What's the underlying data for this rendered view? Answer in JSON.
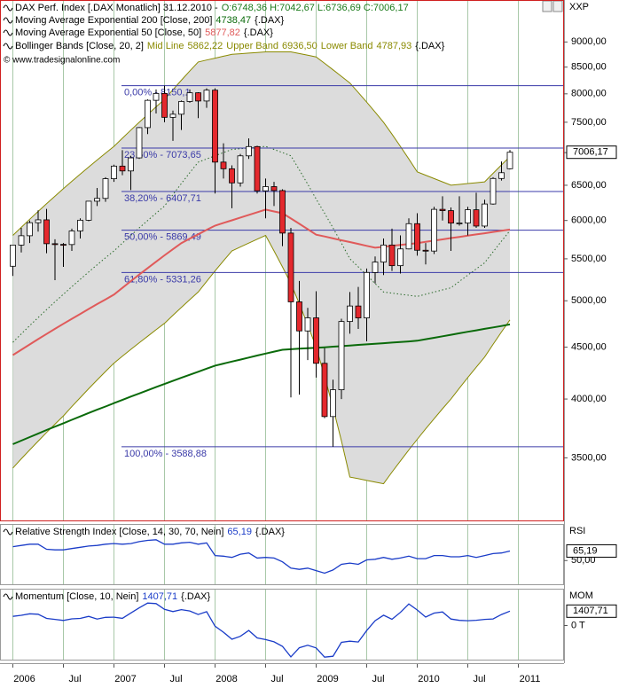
{
  "chart_data": [
    {
      "type": "candlestick",
      "title": "DAX Perf. Index [.DAX  Monatlich] 31.12.2010 -",
      "ohlc_label": "O:6748,36 H:7042,67 L:6736,69 C:7006,17",
      "source": "© www.tradesignalonline.com",
      "axis_label": "XXP",
      "last_value_label": "7006,17",
      "log_scale": true,
      "grid": true,
      "up_color": "#ffffff",
      "down_color": "#e4282d",
      "categories": [
        "2006",
        null,
        null,
        null,
        null,
        null,
        "Jul",
        null,
        null,
        null,
        null,
        null,
        "2007",
        null,
        null,
        null,
        null,
        null,
        "Jul",
        null,
        null,
        null,
        null,
        null,
        "2008",
        null,
        null,
        null,
        null,
        null,
        "Jul",
        null,
        null,
        null,
        null,
        null,
        "2009",
        null,
        null,
        null,
        null,
        null,
        "Jul",
        null,
        null,
        null,
        null,
        null,
        "2010",
        null,
        null,
        null,
        null,
        null,
        "Jul",
        null,
        null,
        null,
        null,
        null,
        "2011"
      ],
      "open": [
        5408,
        5674,
        5796,
        5970,
        6009,
        5692,
        5683,
        5681,
        5859,
        6004,
        6269,
        6309,
        6597,
        6789,
        6715,
        6917,
        7409,
        7883,
        8007,
        7584,
        7638,
        7862,
        8019,
        7871,
        8067,
        6851,
        6748,
        6535,
        6949,
        7097,
        6418,
        6480,
        6422,
        5831,
        4988,
        4669,
        4810,
        4338,
        3844,
        4085,
        4770,
        4941,
        4809,
        5332,
        5459,
        5675,
        5415,
        5625,
        5957,
        5608,
        5598,
        6154,
        6136,
        5965,
        5966,
        6148,
        5925,
        6229,
        6601,
        6748.36,
        null
      ],
      "high": [
        5674,
        5900,
        6000,
        6140,
        6160,
        5750,
        5700,
        5890,
        6030,
        6270,
        6460,
        6620,
        6810,
        7040,
        6950,
        7420,
        7900,
        8080,
        8150,
        7700,
        7880,
        8080,
        8030,
        8100,
        8100,
        7150,
        6800,
        6980,
        7230,
        7110,
        6600,
        6550,
        6440,
        5900,
        5230,
        4920,
        5110,
        4490,
        4180,
        4800,
        5100,
        5160,
        5380,
        5530,
        5760,
        5890,
        5800,
        6030,
        6100,
        5700,
        6190,
        6340,
        6180,
        6340,
        6190,
        6390,
        6290,
        6620,
        6860,
        7042.67,
        null
      ],
      "low": [
        5290,
        5580,
        5700,
        5850,
        5570,
        5240,
        5400,
        5600,
        5760,
        5990,
        6200,
        6260,
        6550,
        6650,
        6430,
        6900,
        7300,
        7650,
        7500,
        7190,
        7370,
        7840,
        7570,
        7750,
        6380,
        6600,
        6170,
        6480,
        6900,
        6380,
        6030,
        6200,
        5660,
        4015,
        4040,
        4370,
        4200,
        3830,
        3589,
        4000,
        4640,
        4690,
        4560,
        5200,
        5300,
        5350,
        5320,
        5620,
        5540,
        5430,
        5560,
        6000,
        5600,
        5930,
        5800,
        5900,
        5900,
        6220,
        6570,
        6736.69,
        null
      ],
      "close": [
        5674,
        5796,
        5970,
        6009,
        5692,
        5683,
        5681,
        5859,
        6004,
        6269,
        6309,
        6597,
        6789,
        6715,
        6917,
        7409,
        7883,
        8007,
        7584,
        7638,
        7862,
        8019,
        7871,
        8067,
        6851,
        6748,
        6535,
        6949,
        7097,
        6418,
        6480,
        6422,
        5831,
        4988,
        4669,
        4810,
        4338,
        3844,
        4085,
        4770,
        4941,
        4809,
        5332,
        5459,
        5675,
        5415,
        5625,
        5957,
        5608,
        5598,
        6154,
        6136,
        5965,
        5966,
        6148,
        5925,
        6229,
        6601,
        6688,
        7006.17,
        null
      ],
      "ylim": [
        3030,
        9900
      ],
      "yticks": [
        {
          "value": 3500,
          "label": "3500,00"
        },
        {
          "value": 4000,
          "label": "4000,00"
        },
        {
          "value": 4500,
          "label": "4500,00"
        },
        {
          "value": 5000,
          "label": "5000,00"
        },
        {
          "value": 5500,
          "label": "5500,00"
        },
        {
          "value": 6000,
          "label": "6000,00"
        },
        {
          "value": 6500,
          "label": "6500,00"
        },
        {
          "value": 7000,
          "label": "7000,00"
        },
        {
          "value": 7500,
          "label": "7500,00"
        },
        {
          "value": 8000,
          "label": "8000,00"
        },
        {
          "value": 8500,
          "label": "8500,00"
        },
        {
          "value": 9000,
          "label": "9000,00"
        }
      ],
      "series": [
        {
          "name": "Moving Average Exponential 200 [Close, 200]",
          "value_label": "4738,47",
          "suffix": "{.DAX}",
          "color": "#0a6a0a",
          "values": [
            3610,
            3639,
            3669,
            3698,
            3728,
            3757,
            3786,
            3816,
            3845,
            3875,
            3904,
            3933,
            3963,
            3992,
            4022,
            4051,
            4080,
            4110,
            4139,
            4168,
            4198,
            4227,
            4256,
            4286,
            4315,
            4335,
            4355,
            4375,
            4395,
            4415,
            4435,
            4455,
            4474,
            4479,
            4484,
            4489,
            4493,
            4499,
            4505,
            4511,
            4517,
            4523,
            4529,
            4535,
            4541,
            4547,
            4553,
            4559,
            4566,
            4582,
            4597,
            4613,
            4628,
            4644,
            4660,
            4675,
            4691,
            4706,
            4722,
            4738.47,
            null
          ]
        },
        {
          "name": "Moving Average Exponential 50 [Close, 50]",
          "value_label": "5877,82",
          "suffix": "{.DAX}",
          "color": "#e05a5a",
          "values": [
            4420,
            4474,
            4528,
            4583,
            4637,
            4691,
            4745,
            4799,
            4853,
            4908,
            4962,
            5016,
            5070,
            5149,
            5228,
            5306,
            5385,
            5464,
            5543,
            5621,
            5700,
            5758,
            5815,
            5873,
            5930,
            5967,
            6003,
            6040,
            6077,
            6113,
            6150,
            6125,
            6100,
            6028,
            5955,
            5883,
            5810,
            5786,
            5761,
            5737,
            5713,
            5689,
            5664,
            5640,
            5652,
            5664,
            5676,
            5688,
            5700,
            5716,
            5732,
            5748,
            5765,
            5781,
            5797,
            5813,
            5829,
            5846,
            5862,
            5877.82,
            null
          ]
        }
      ],
      "bollinger": {
        "name": "Bollinger Bands [Close, 20, 2]",
        "suffix": "{.DAX}",
        "color": "#8a8a00",
        "fill": "#dcdcdc",
        "series": [
          {
            "name": "Mid Line",
            "value_label": "5862,22",
            "values": [
              4550,
              4638,
              4725,
              4813,
              4900,
              4988,
              5075,
              5163,
              5250,
              5338,
              5425,
              5513,
              5600,
              5700,
              5800,
              5900,
              6000,
              6100,
              6200,
              6363,
              6525,
              6688,
              6850,
              6900,
              6950,
              7000,
              7050,
              7063,
              7075,
              7088,
              7100,
              7050,
              7000,
              6950,
              6733,
              6517,
              6300,
              6100,
              5900,
              5700,
              5500,
              5400,
              5300,
              5200,
              5100,
              5088,
              5075,
              5063,
              5050,
              5075,
              5100,
              5125,
              5150,
              5225,
              5300,
              5375,
              5450,
              5587,
              5725,
              5862.22,
              null
            ]
          },
          {
            "name": "Upper Band",
            "value_label": "6936,50",
            "values": [
              5800,
              5908,
              6017,
              6125,
              6233,
              6342,
              6450,
              6558,
              6667,
              6775,
              6883,
              6992,
              7100,
              7233,
              7367,
              7500,
              7633,
              7767,
              7900,
              8075,
              8250,
              8425,
              8600,
              8638,
              8675,
              8713,
              8750,
              8763,
              8775,
              8788,
              8800,
              8800,
              8800,
              8800,
              8767,
              8733,
              8700,
              8575,
              8450,
              8325,
              8200,
              8025,
              7850,
              7675,
              7500,
              7300,
              7100,
              6900,
              6700,
              6650,
              6600,
              6550,
              6500,
              6513,
              6525,
              6538,
              6550,
              6679,
              6808,
              6936.5,
              null
            ]
          },
          {
            "name": "Lower Band",
            "value_label": "4787,93",
            "values": [
              3420,
              3492,
              3563,
              3635,
              3707,
              3778,
              3850,
              3932,
              4013,
              4095,
              4177,
              4258,
              4340,
              4408,
              4477,
              4545,
              4613,
              4682,
              4750,
              4838,
              4925,
              5013,
              5100,
              5225,
              5350,
              5475,
              5600,
              5650,
              5700,
              5750,
              5800,
              5600,
              5400,
              5200,
              4967,
              4733,
              4500,
              4213,
              3925,
              3638,
              3350,
              3338,
              3325,
              3313,
              3300,
              3388,
              3475,
              3563,
              3650,
              3738,
              3825,
              3913,
              4000,
              4100,
              4200,
              4300,
              4400,
              4529,
              4658,
              4787.93,
              null
            ]
          }
        ]
      },
      "fibonacci": {
        "color": "#3a3aa8",
        "levels": [
          {
            "label": "0,00% - 8150,1",
            "value": 8150.1
          },
          {
            "label": "23,60% - 7073,65",
            "value": 7073.65
          },
          {
            "label": "38,20% - 6407,71",
            "value": 6407.71
          },
          {
            "label": "50,00% - 5869,49",
            "value": 5869.49
          },
          {
            "label": "61,80% - 5331,26",
            "value": 5331.26
          },
          {
            "label": "100,00% - 3588,88",
            "value": 3588.88
          }
        ]
      }
    },
    {
      "type": "line",
      "title": "Relative Strength Index [Close, 14, 30, 70, Nein]",
      "value_label": "65,19",
      "suffix": "{.DAX}",
      "axis_label": "RSI",
      "color": "#1a3cc8",
      "values": [
        72,
        74,
        76,
        76,
        68,
        67,
        67,
        69,
        71,
        73,
        74,
        76,
        77,
        76,
        77,
        80,
        82,
        83,
        76,
        76,
        78,
        79,
        76,
        78,
        58,
        57,
        55,
        60,
        62,
        54,
        55,
        54,
        48,
        38,
        36,
        38,
        34,
        30,
        35,
        44,
        46,
        44,
        51,
        52,
        55,
        52,
        54,
        57,
        53,
        53,
        58,
        58,
        56,
        56,
        58,
        55,
        58,
        61,
        62,
        65.19,
        null
      ],
      "ylim": [
        11,
        108
      ],
      "yticks": [
        {
          "value": 50,
          "label": "50,00"
        }
      ]
    },
    {
      "type": "line",
      "title": "Momentum [Close, 10, Nein]",
      "value_label": "1407,71",
      "suffix": "{.DAX}",
      "axis_label": "MOM",
      "color": "#1a3cc8",
      "values": [
        900,
        1000,
        1150,
        1100,
        700,
        600,
        500,
        650,
        700,
        900,
        635,
        801,
        819,
        706,
        1225,
        1726,
        2202,
        2148,
        1580,
        1369,
        1553,
        1422,
        1082,
        1352,
        -66,
        -661,
        -1348,
        -1058,
        -487,
        -1220,
        -1382,
        -1597,
        -2040,
        -3079,
        -2182,
        -1938,
        -2197,
        -3105,
        -3012,
        -1648,
        -1539,
        -1613,
        -499,
        471,
        1006,
        605,
        1287,
        2113,
        1523,
        828,
        1213,
        1327,
        633,
        507,
        473,
        510,
        604,
        644,
        1080,
        1407.71,
        null
      ],
      "ylim": [
        -3432,
        3607
      ],
      "yticks": [
        {
          "value": 0,
          "label": "0 T"
        }
      ]
    }
  ]
}
